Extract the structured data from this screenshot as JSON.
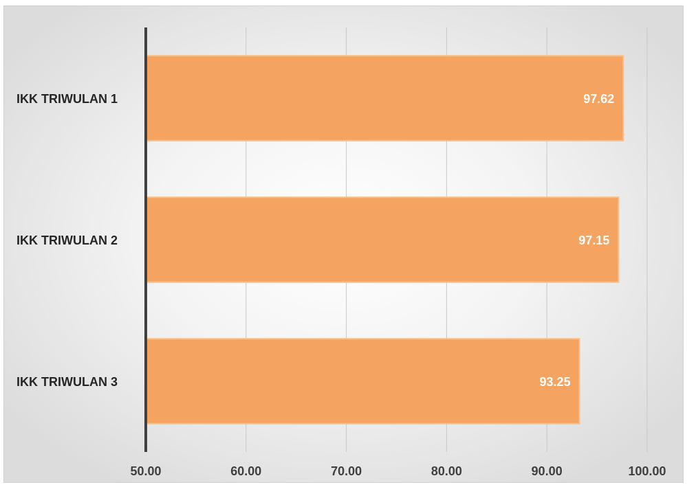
{
  "chart_data": {
    "type": "bar",
    "orientation": "horizontal",
    "title": "",
    "xlabel": "",
    "ylabel": "",
    "categories": [
      "IKK TRIWULAN 1",
      "IKK TRIWULAN 2",
      "IKK TRIWULAN 3"
    ],
    "values": [
      97.62,
      97.15,
      93.25
    ],
    "data_labels": [
      "97.62",
      "97.15",
      "93.25"
    ],
    "xlim": [
      50,
      100
    ],
    "x_ticks": [
      50,
      60,
      70,
      80,
      90,
      100
    ],
    "x_tick_labels": [
      "50.00",
      "60.00",
      "70.00",
      "80.00",
      "90.00",
      "100.00"
    ],
    "grid": "vertical",
    "legend": "none",
    "colors": {
      "bar": "#f4a460",
      "bar_border": "#f7c08a",
      "axis": "#404040",
      "grid": "#c8c8c8"
    }
  }
}
